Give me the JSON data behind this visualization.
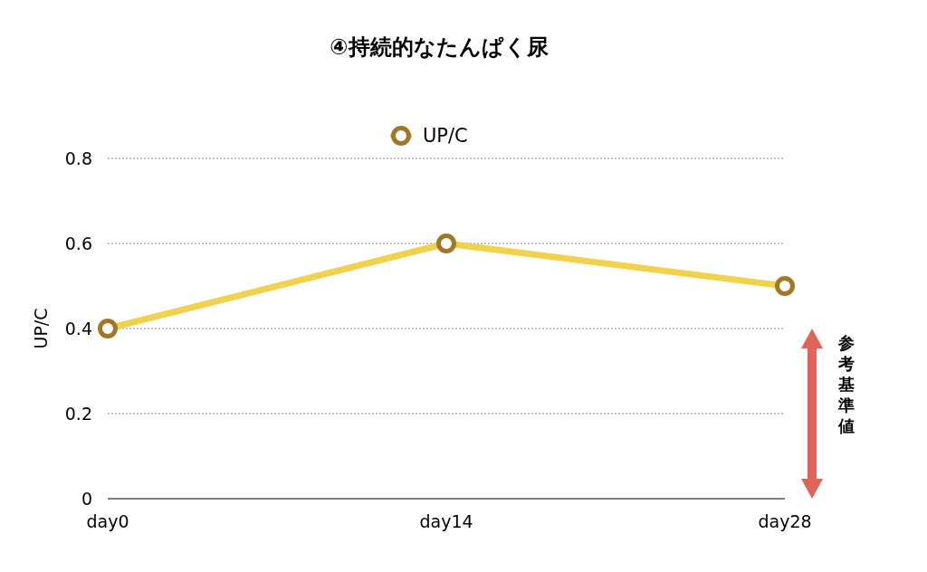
{
  "chart_data": {
    "type": "line",
    "title": "④持続的なたんぱく尿",
    "ylabel": "UP/C",
    "categories": [
      "day0",
      "day14",
      "day28"
    ],
    "series": [
      {
        "name": "UP/C",
        "color": "#f0d24e",
        "values": [
          0.4,
          0.6,
          0.5
        ]
      }
    ],
    "ylim": [
      0,
      0.8
    ],
    "yticks": [
      0,
      0.2,
      0.4,
      0.6,
      0.8
    ],
    "grid": "y",
    "legend": "top",
    "marker": "circle",
    "line_style": "solid",
    "annotations": [
      "参考基準値"
    ]
  }
}
